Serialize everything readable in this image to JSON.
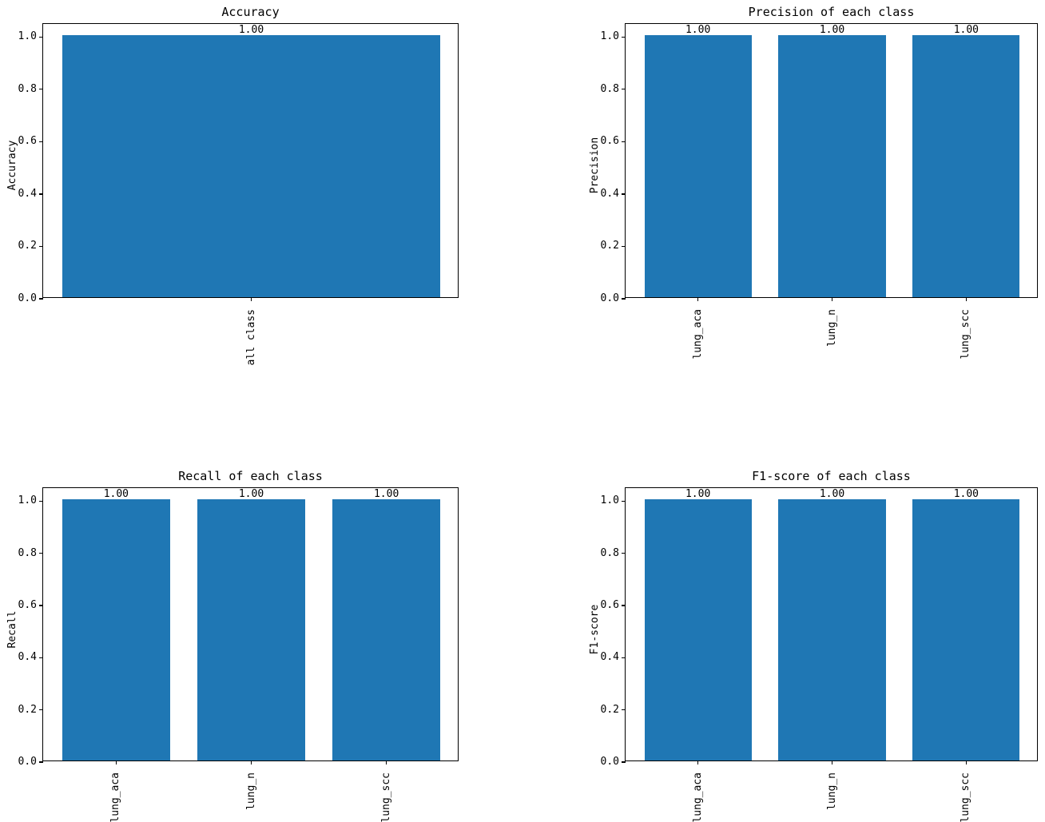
{
  "figure": {
    "background": "#ffffff",
    "bar_color": "#1f77b4",
    "text_color": "#000000"
  },
  "chart_data": [
    {
      "id": "accuracy",
      "type": "bar",
      "title": "Accuracy",
      "xlabel": "",
      "ylabel": "Accuracy",
      "categories": [
        "all class"
      ],
      "values": [
        1.0
      ],
      "value_labels": [
        "1.00"
      ],
      "yticks": [
        0.0,
        0.2,
        0.4,
        0.6,
        0.8,
        1.0
      ],
      "ytick_labels": [
        "0.0",
        "0.2",
        "0.4",
        "0.6",
        "0.8",
        "1.0"
      ],
      "ylim": [
        0,
        1.05
      ],
      "grid": false,
      "legend": false
    },
    {
      "id": "precision",
      "type": "bar",
      "title": "Precision of each class",
      "xlabel": "",
      "ylabel": "Precision",
      "categories": [
        "lung_aca",
        "lung_n",
        "lung_scc"
      ],
      "values": [
        1.0,
        1.0,
        1.0
      ],
      "value_labels": [
        "1.00",
        "1.00",
        "1.00"
      ],
      "yticks": [
        0.0,
        0.2,
        0.4,
        0.6,
        0.8,
        1.0
      ],
      "ytick_labels": [
        "0.0",
        "0.2",
        "0.4",
        "0.6",
        "0.8",
        "1.0"
      ],
      "ylim": [
        0,
        1.05
      ],
      "grid": false,
      "legend": false
    },
    {
      "id": "recall",
      "type": "bar",
      "title": "Recall of each class",
      "xlabel": "",
      "ylabel": "Recall",
      "categories": [
        "lung_aca",
        "lung_n",
        "lung_scc"
      ],
      "values": [
        1.0,
        1.0,
        1.0
      ],
      "value_labels": [
        "1.00",
        "1.00",
        "1.00"
      ],
      "yticks": [
        0.0,
        0.2,
        0.4,
        0.6,
        0.8,
        1.0
      ],
      "ytick_labels": [
        "0.0",
        "0.2",
        "0.4",
        "0.6",
        "0.8",
        "1.0"
      ],
      "ylim": [
        0,
        1.05
      ],
      "grid": false,
      "legend": false
    },
    {
      "id": "f1_score",
      "type": "bar",
      "title": "F1-score of each class",
      "xlabel": "",
      "ylabel": "F1-score",
      "categories": [
        "lung_aca",
        "lung_n",
        "lung_scc"
      ],
      "values": [
        1.0,
        1.0,
        1.0
      ],
      "value_labels": [
        "1.00",
        "1.00",
        "1.00"
      ],
      "yticks": [
        0.0,
        0.2,
        0.4,
        0.6,
        0.8,
        1.0
      ],
      "ytick_labels": [
        "0.0",
        "0.2",
        "0.4",
        "0.6",
        "0.8",
        "1.0"
      ],
      "ylim": [
        0,
        1.05
      ],
      "grid": false,
      "legend": false
    }
  ]
}
